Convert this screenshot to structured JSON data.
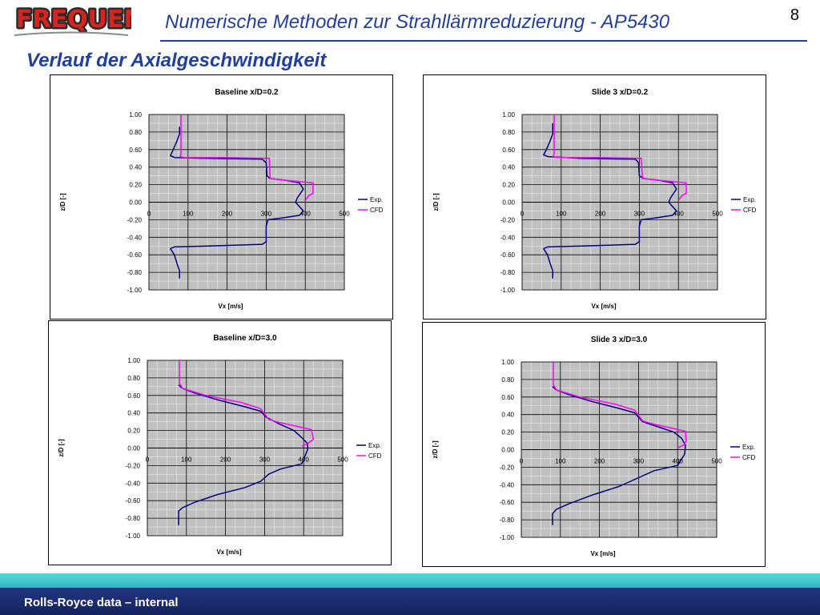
{
  "header": {
    "logo_text": "FREQUENZ",
    "title": "Numerische Methoden zur Strahllärmreduzierung - AP5430",
    "page_number": "8"
  },
  "slide_title": "Verlauf der Axialgeschwindigkeit",
  "footer": {
    "text": "Rolls-Royce data – internal"
  },
  "colors": {
    "exp": "#000080",
    "cfd": "#ff00ff",
    "accent": "#1f3f9a",
    "plot_bg": "#c0c0c0"
  },
  "chart_data": [
    {
      "type": "line",
      "title": "Baseline x/D=0.2",
      "xlabel": "Vx [m/s]",
      "ylabel": "z/D [-]",
      "xlim": [
        0,
        500
      ],
      "ylim": [
        -1.0,
        1.0
      ],
      "x_ticks": [
        "0",
        "100",
        "200",
        "300",
        "400",
        "500"
      ],
      "y_ticks": [
        "1.00",
        "0.80",
        "0.60",
        "0.40",
        "0.20",
        "0.00",
        "-0.20",
        "-0.40",
        "-0.60",
        "-0.80",
        "-1.00"
      ],
      "grid": true,
      "legend": "right",
      "series": [
        {
          "name": "Exp.",
          "points": [
            [
              78,
              0.86
            ],
            [
              78,
              0.78
            ],
            [
              72,
              0.7
            ],
            [
              62,
              0.6
            ],
            [
              55,
              0.53
            ],
            [
              66,
              0.51
            ],
            [
              150,
              0.5
            ],
            [
              290,
              0.49
            ],
            [
              300,
              0.45
            ],
            [
              302,
              0.3
            ],
            [
              310,
              0.27
            ],
            [
              350,
              0.25
            ],
            [
              385,
              0.22
            ],
            [
              395,
              0.15
            ],
            [
              380,
              0.05
            ],
            [
              375,
              0.0
            ],
            [
              385,
              -0.05
            ],
            [
              395,
              -0.1
            ],
            [
              385,
              -0.15
            ],
            [
              340,
              -0.18
            ],
            [
              305,
              -0.2
            ],
            [
              300,
              -0.27
            ],
            [
              300,
              -0.45
            ],
            [
              290,
              -0.48
            ],
            [
              150,
              -0.5
            ],
            [
              65,
              -0.51
            ],
            [
              55,
              -0.53
            ],
            [
              65,
              -0.6
            ],
            [
              72,
              -0.7
            ],
            [
              78,
              -0.78
            ],
            [
              78,
              -0.87
            ]
          ]
        },
        {
          "name": "CFD",
          "points": [
            [
              82,
              1.0
            ],
            [
              82,
              0.55
            ],
            [
              80,
              0.52
            ],
            [
              90,
              0.51
            ],
            [
              200,
              0.51
            ],
            [
              308,
              0.5
            ],
            [
              310,
              0.27
            ],
            [
              350,
              0.25
            ],
            [
              395,
              0.23
            ],
            [
              420,
              0.22
            ],
            [
              420,
              0.1
            ],
            [
              410,
              0.08
            ],
            [
              400,
              0.02
            ]
          ]
        }
      ]
    },
    {
      "type": "line",
      "title": "Slide 3 x/D=0.2",
      "xlabel": "Vx [m/s]",
      "ylabel": "z/D [-]",
      "xlim": [
        0,
        500
      ],
      "ylim": [
        -1.0,
        1.0
      ],
      "x_ticks": [
        "0",
        "100",
        "200",
        "300",
        "400",
        "500"
      ],
      "y_ticks": [
        "1.00",
        "0.80",
        "0.60",
        "0.40",
        "0.20",
        "0.00",
        "-0.20",
        "-0.40",
        "-0.60",
        "-0.80",
        "-1.00"
      ],
      "grid": true,
      "legend": "right",
      "series": [
        {
          "name": "Exp.",
          "points": [
            [
              78,
              0.9
            ],
            [
              78,
              0.78
            ],
            [
              72,
              0.7
            ],
            [
              62,
              0.6
            ],
            [
              55,
              0.54
            ],
            [
              66,
              0.52
            ],
            [
              150,
              0.5
            ],
            [
              290,
              0.49
            ],
            [
              298,
              0.45
            ],
            [
              300,
              0.3
            ],
            [
              310,
              0.27
            ],
            [
              350,
              0.25
            ],
            [
              385,
              0.22
            ],
            [
              395,
              0.15
            ],
            [
              380,
              0.05
            ],
            [
              375,
              0.0
            ],
            [
              385,
              -0.05
            ],
            [
              395,
              -0.1
            ],
            [
              385,
              -0.15
            ],
            [
              340,
              -0.18
            ],
            [
              305,
              -0.2
            ],
            [
              300,
              -0.27
            ],
            [
              300,
              -0.45
            ],
            [
              290,
              -0.48
            ],
            [
              150,
              -0.5
            ],
            [
              65,
              -0.51
            ],
            [
              55,
              -0.53
            ],
            [
              65,
              -0.6
            ],
            [
              72,
              -0.7
            ],
            [
              78,
              -0.78
            ],
            [
              78,
              -0.87
            ]
          ]
        },
        {
          "name": "CFD",
          "points": [
            [
              82,
              1.0
            ],
            [
              82,
              0.55
            ],
            [
              80,
              0.52
            ],
            [
              90,
              0.51
            ],
            [
              200,
              0.51
            ],
            [
              305,
              0.5
            ],
            [
              308,
              0.27
            ],
            [
              350,
              0.25
            ],
            [
              395,
              0.23
            ],
            [
              420,
              0.22
            ],
            [
              420,
              0.1
            ],
            [
              410,
              0.08
            ],
            [
              400,
              0.02
            ]
          ]
        }
      ]
    },
    {
      "type": "line",
      "title": "Baseline x/D=3.0",
      "xlabel": "Vx [m/s]",
      "ylabel": "z/D [-]",
      "xlim": [
        0,
        500
      ],
      "ylim": [
        -1.0,
        1.0
      ],
      "x_ticks": [
        "0",
        "100",
        "200",
        "300",
        "400",
        "500"
      ],
      "y_ticks": [
        "1.00",
        "0.80",
        "0.60",
        "0.40",
        "0.20",
        "0.00",
        "-0.20",
        "-0.40",
        "-0.60",
        "-0.80",
        "-1.00"
      ],
      "grid": true,
      "legend": "right",
      "series": [
        {
          "name": "Exp.",
          "points": [
            [
              80,
              0.72
            ],
            [
              90,
              0.68
            ],
            [
              120,
              0.63
            ],
            [
              180,
              0.55
            ],
            [
              250,
              0.47
            ],
            [
              290,
              0.42
            ],
            [
              305,
              0.35
            ],
            [
              340,
              0.27
            ],
            [
              375,
              0.2
            ],
            [
              395,
              0.12
            ],
            [
              410,
              0.05
            ],
            [
              410,
              -0.02
            ],
            [
              395,
              -0.18
            ],
            [
              340,
              -0.24
            ],
            [
              310,
              -0.3
            ],
            [
              290,
              -0.38
            ],
            [
              250,
              -0.45
            ],
            [
              180,
              -0.53
            ],
            [
              120,
              -0.62
            ],
            [
              90,
              -0.68
            ],
            [
              80,
              -0.72
            ],
            [
              80,
              -0.88
            ]
          ]
        },
        {
          "name": "CFD",
          "points": [
            [
              82,
              1.0
            ],
            [
              82,
              0.74
            ],
            [
              90,
              0.68
            ],
            [
              150,
              0.6
            ],
            [
              240,
              0.52
            ],
            [
              290,
              0.45
            ],
            [
              310,
              0.33
            ],
            [
              330,
              0.3
            ],
            [
              380,
              0.25
            ],
            [
              420,
              0.21
            ],
            [
              425,
              0.1
            ],
            [
              410,
              0.05
            ],
            [
              395,
              0.02
            ]
          ]
        }
      ]
    },
    {
      "type": "line",
      "title": "Slide 3 x/D=3.0",
      "xlabel": "Vx [m/s]",
      "ylabel": "z/D [-]",
      "xlim": [
        0,
        500
      ],
      "ylim": [
        -1.0,
        1.0
      ],
      "x_ticks": [
        "0",
        "100",
        "200",
        "300",
        "400",
        "500"
      ],
      "y_ticks": [
        "1.00",
        "0.80",
        "0.60",
        "0.40",
        "0.20",
        "0.00",
        "-0.20",
        "-0.40",
        "-0.60",
        "-0.80",
        "-1.00"
      ],
      "grid": true,
      "legend": "right",
      "series": [
        {
          "name": "Exp.",
          "points": [
            [
              80,
              0.72
            ],
            [
              90,
              0.68
            ],
            [
              120,
              0.63
            ],
            [
              180,
              0.55
            ],
            [
              250,
              0.47
            ],
            [
              290,
              0.42
            ],
            [
              310,
              0.32
            ],
            [
              350,
              0.26
            ],
            [
              390,
              0.2
            ],
            [
              410,
              0.13
            ],
            [
              420,
              0.05
            ],
            [
              418,
              -0.05
            ],
            [
              400,
              -0.18
            ],
            [
              340,
              -0.24
            ],
            [
              300,
              -0.32
            ],
            [
              250,
              -0.42
            ],
            [
              180,
              -0.52
            ],
            [
              120,
              -0.62
            ],
            [
              90,
              -0.68
            ],
            [
              80,
              -0.73
            ],
            [
              80,
              -0.86
            ]
          ]
        },
        {
          "name": "CFD",
          "points": [
            [
              82,
              1.0
            ],
            [
              82,
              0.74
            ],
            [
              90,
              0.68
            ],
            [
              150,
              0.6
            ],
            [
              240,
              0.52
            ],
            [
              290,
              0.45
            ],
            [
              310,
              0.33
            ],
            [
              330,
              0.3
            ],
            [
              380,
              0.25
            ],
            [
              420,
              0.21
            ],
            [
              422,
              0.1
            ],
            [
              415,
              0.05
            ],
            [
              400,
              0.02
            ]
          ]
        }
      ]
    }
  ]
}
